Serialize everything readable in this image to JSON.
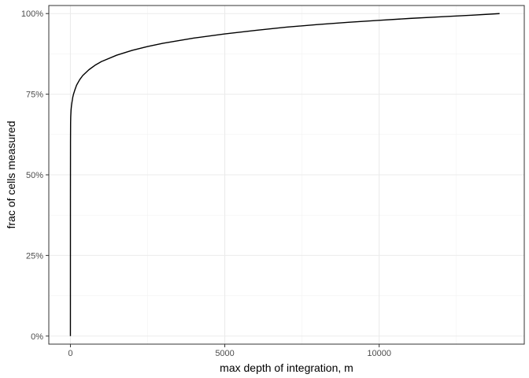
{
  "chart_data": {
    "type": "line",
    "title": "",
    "xlabel": "max depth of integration, m",
    "ylabel": "frac of cells measured",
    "xlim": [
      -700,
      14700
    ],
    "ylim": [
      -0.025,
      1.025
    ],
    "x_ticks": [
      0,
      5000,
      10000
    ],
    "x_tick_labels": [
      "0",
      "5000",
      "10000"
    ],
    "y_ticks": [
      0,
      0.25,
      0.5,
      0.75,
      1.0
    ],
    "y_tick_labels": [
      "0%",
      "25%",
      "50%",
      "75%",
      "100%"
    ],
    "grid": true,
    "legend": "none",
    "series": [
      {
        "color": "#000000",
        "x": [
          0,
          1,
          3,
          6,
          10,
          20,
          35,
          50,
          75,
          100,
          150,
          200,
          300,
          400,
          600,
          800,
          1000,
          1500,
          2000,
          2500,
          3000,
          4000,
          5000,
          6000,
          7000,
          8000,
          9000,
          10000,
          11000,
          12000,
          13000,
          13900
        ],
        "y": [
          0.0,
          0.42,
          0.6,
          0.66,
          0.68,
          0.7,
          0.715,
          0.725,
          0.74,
          0.75,
          0.765,
          0.778,
          0.795,
          0.808,
          0.826,
          0.84,
          0.851,
          0.871,
          0.886,
          0.898,
          0.908,
          0.924,
          0.937,
          0.948,
          0.958,
          0.966,
          0.973,
          0.979,
          0.985,
          0.99,
          0.995,
          1.0
        ]
      }
    ]
  }
}
